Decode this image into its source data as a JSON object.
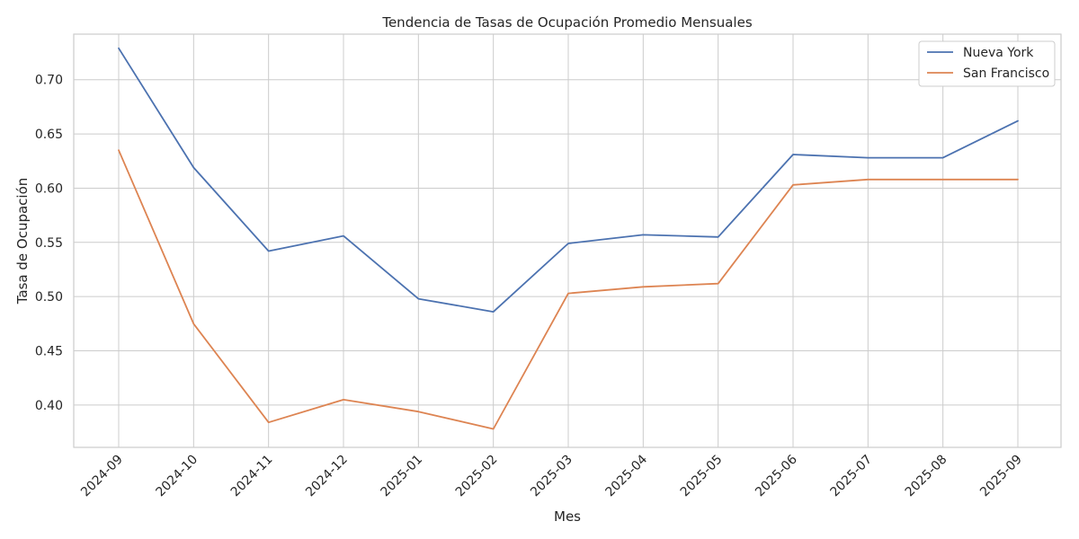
{
  "chart_data": {
    "type": "line",
    "title": "Tendencia de Tasas de Ocupación Promedio Mensuales",
    "xlabel": "Mes",
    "ylabel": "Tasa de Ocupación",
    "categories": [
      "2024-09",
      "2024-10",
      "2024-11",
      "2024-12",
      "2025-01",
      "2025-02",
      "2025-03",
      "2025-04",
      "2025-05",
      "2025-06",
      "2025-07",
      "2025-08",
      "2025-09"
    ],
    "ylim": [
      0.361,
      0.742
    ],
    "yticks": [
      "0.40",
      "0.45",
      "0.50",
      "0.55",
      "0.60",
      "0.65",
      "0.70"
    ],
    "grid": true,
    "legend_position": "top-right",
    "series": [
      {
        "name": "Nueva York",
        "color": "#4c72b0",
        "values": [
          0.729,
          0.619,
          0.542,
          0.556,
          0.498,
          0.486,
          0.549,
          0.557,
          0.555,
          0.631,
          0.628,
          0.628,
          0.662
        ]
      },
      {
        "name": "San Francisco",
        "color": "#dd8452",
        "values": [
          0.635,
          0.475,
          0.384,
          0.405,
          0.394,
          0.378,
          0.503,
          0.509,
          0.512,
          0.603,
          0.608,
          0.608,
          0.608
        ]
      }
    ]
  }
}
